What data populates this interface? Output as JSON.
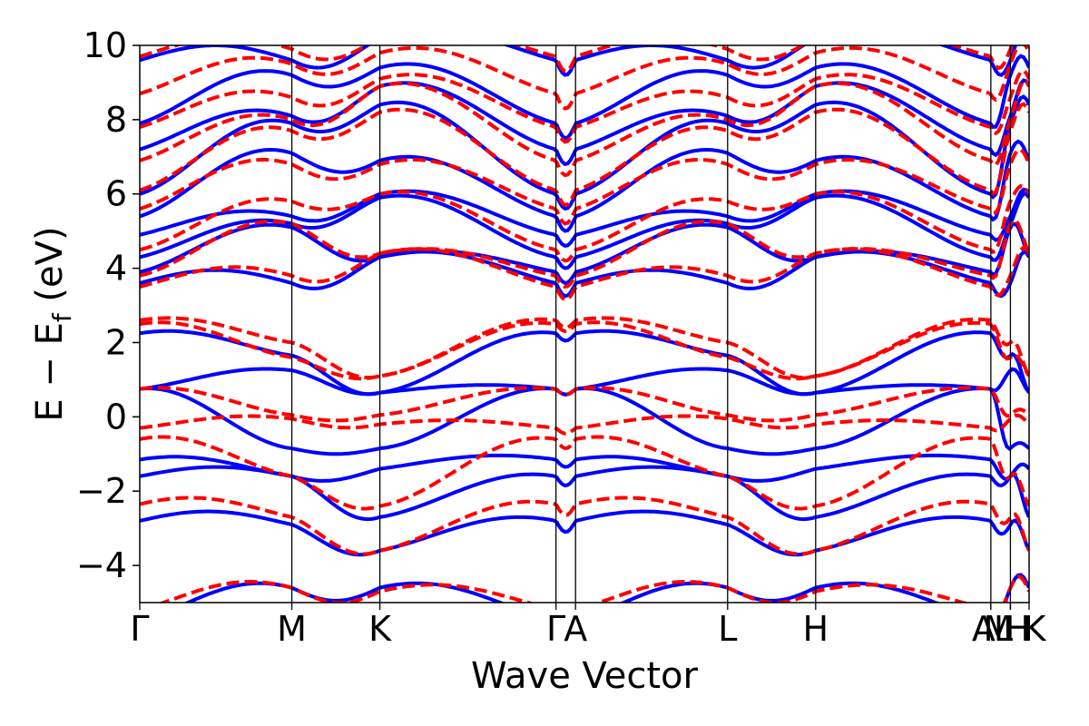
{
  "chart_data": {
    "type": "line",
    "xlabel": "Wave Vector",
    "ylabel": "E − E",
    "ylabel_sub": "f",
    "ylabel_unit": " (eV)",
    "ylim": [
      -5,
      10
    ],
    "yticks": [
      -4,
      -2,
      0,
      2,
      4,
      6,
      8,
      10
    ],
    "ytick_labels": [
      "−4",
      "−2",
      "0",
      "2",
      "4",
      "6",
      "8",
      "10"
    ],
    "xlim": [
      0,
      1
    ],
    "kpoints": [
      {
        "label": "Γ",
        "x": 0.0
      },
      {
        "label": "M",
        "x": 0.171
      },
      {
        "label": "K",
        "x": 0.27
      },
      {
        "label": "Γ",
        "x": 0.468
      },
      {
        "label": "A",
        "x": 0.49
      },
      {
        "label": "L",
        "x": 0.661
      },
      {
        "label": "H",
        "x": 0.76
      },
      {
        "label": "A",
        "x": 0.957
      },
      {
        "label": "M",
        "x": 0.957
      },
      {
        "label": "L",
        "x": 0.979
      },
      {
        "label": "H",
        "x": 0.979
      },
      {
        "label": "K",
        "x": 1.0
      }
    ],
    "grid": false,
    "legend": "none",
    "series": [
      {
        "style": "solid",
        "color": "#0000ff",
        "bands": [
          {
            "gamma": -5.5,
            "m": -4.6,
            "k": -4.6,
            "wave": 0.35
          },
          {
            "gamma": -2.8,
            "m": -2.9,
            "k": -3.6,
            "wave": 0.3
          },
          {
            "gamma": -1.6,
            "m": -1.6,
            "k": -2.7,
            "wave": 0.25
          },
          {
            "gamma": -1.15,
            "m": -1.6,
            "k": -1.4,
            "wave": 0.2
          },
          {
            "gamma": 0.75,
            "m": -0.85,
            "k": -0.85,
            "wave": 0.15
          },
          {
            "gamma": 0.75,
            "m": 1.25,
            "k": 0.65,
            "wave": 0.15
          },
          {
            "gamma": 2.25,
            "m": 1.65,
            "k": 0.65,
            "wave": 0.2
          },
          {
            "gamma": 3.6,
            "m": 3.6,
            "k": 4.3,
            "wave": 0.35
          },
          {
            "gamma": 3.9,
            "m": 5.1,
            "k": 4.3,
            "wave": 0.3
          },
          {
            "gamma": 4.3,
            "m": 5.2,
            "k": 5.9,
            "wave": 0.3
          },
          {
            "gamma": 4.9,
            "m": 5.4,
            "k": 6.0,
            "wave": 0.3
          },
          {
            "gamma": 5.4,
            "m": 7.1,
            "k": 6.9,
            "wave": 0.4
          },
          {
            "gamma": 6.0,
            "m": 7.9,
            "k": 8.4,
            "wave": 0.4
          },
          {
            "gamma": 7.2,
            "m": 8.1,
            "k": 8.9,
            "wave": 0.4
          },
          {
            "gamma": 7.9,
            "m": 9.2,
            "k": 9.4,
            "wave": 0.4
          },
          {
            "gamma": 9.6,
            "m": 9.6,
            "k": 10.2,
            "wave": 0.4
          }
        ]
      },
      {
        "style": "dashed",
        "color": "#ff0000",
        "bands": [
          {
            "gamma": -5.2,
            "m": -4.6,
            "k": -4.7,
            "wave": 0.35
          },
          {
            "gamma": -2.35,
            "m": -2.7,
            "k": -3.6,
            "wave": 0.3
          },
          {
            "gamma": -0.6,
            "m": -1.6,
            "k": -2.4,
            "wave": 0.25
          },
          {
            "gamma": -0.3,
            "m": -0.05,
            "k": -0.2,
            "wave": 0.15
          },
          {
            "gamma": 0.75,
            "m": 0.05,
            "k": 0.05,
            "wave": 0.15
          },
          {
            "gamma": 2.5,
            "m": 1.6,
            "k": 1.1,
            "wave": 0.2
          },
          {
            "gamma": 2.6,
            "m": 2.0,
            "k": 1.1,
            "wave": 0.2
          },
          {
            "gamma": 3.5,
            "m": 3.8,
            "k": 4.4,
            "wave": 0.35
          },
          {
            "gamma": 3.8,
            "m": 5.2,
            "k": 4.4,
            "wave": 0.3
          },
          {
            "gamma": 4.5,
            "m": 5.8,
            "k": 6.0,
            "wave": 0.3
          },
          {
            "gamma": 5.6,
            "m": 6.8,
            "k": 6.8,
            "wave": 0.4
          },
          {
            "gamma": 6.1,
            "m": 7.7,
            "k": 8.2,
            "wave": 0.4
          },
          {
            "gamma": 6.9,
            "m": 8.0,
            "k": 8.9,
            "wave": 0.4
          },
          {
            "gamma": 7.8,
            "m": 8.6,
            "k": 9.1,
            "wave": 0.4
          },
          {
            "gamma": 8.7,
            "m": 9.5,
            "k": 9.8,
            "wave": 0.4
          },
          {
            "gamma": 9.7,
            "m": 9.9,
            "k": 10.2,
            "wave": 0.4
          }
        ]
      }
    ]
  }
}
